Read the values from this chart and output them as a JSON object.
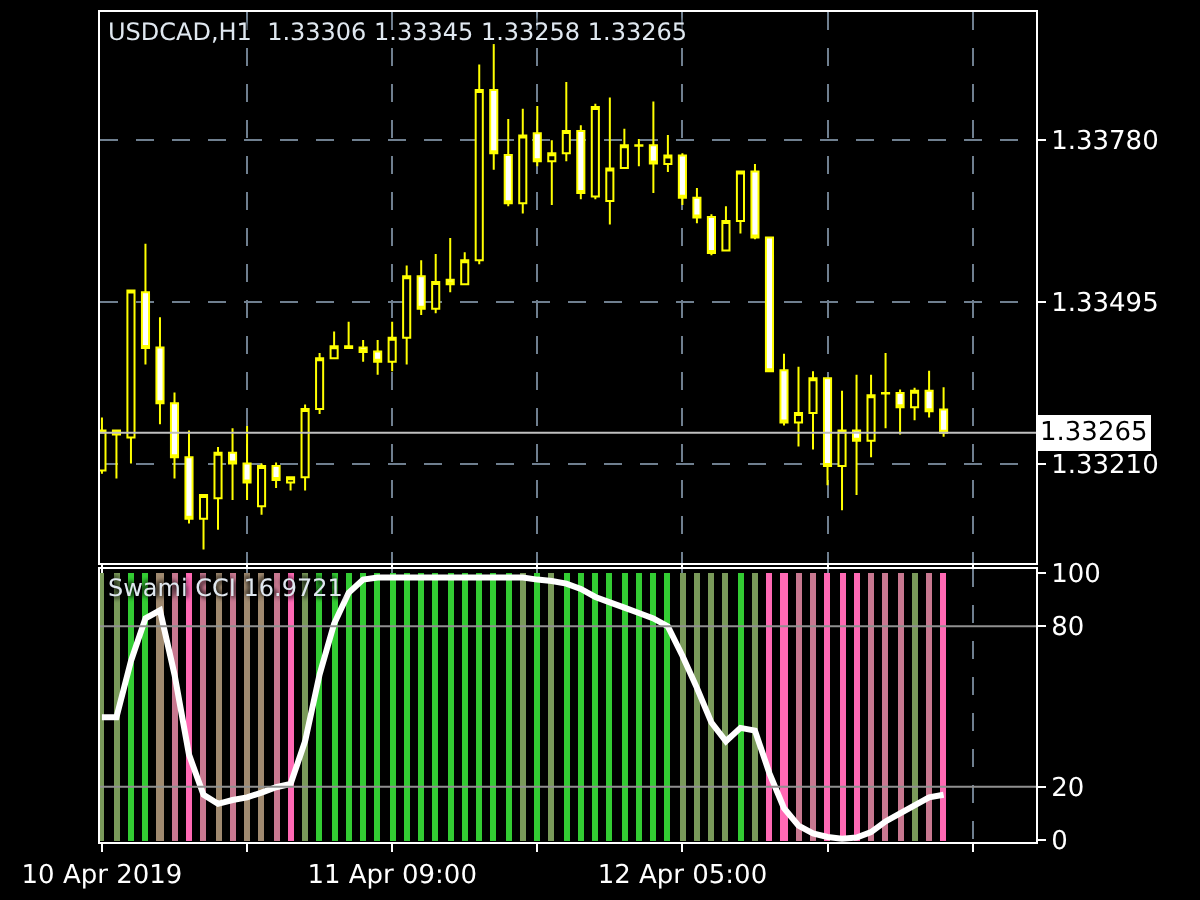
{
  "chart_data": [
    {
      "type": "candlestick",
      "title": "USDCAD,H1  1.33306 1.33345 1.33258 1.33265",
      "x": [
        "2019-04-10T13:00",
        "2019-04-10T14:00",
        "2019-04-10T15:00",
        "2019-04-10T16:00",
        "2019-04-10T17:00",
        "2019-04-10T18:00",
        "2019-04-10T19:00",
        "2019-04-10T20:00",
        "2019-04-10T21:00",
        "2019-04-10T22:00",
        "2019-04-10T23:00",
        "2019-04-11T00:00",
        "2019-04-11T01:00",
        "2019-04-11T02:00",
        "2019-04-11T03:00",
        "2019-04-11T04:00",
        "2019-04-11T05:00",
        "2019-04-11T06:00",
        "2019-04-11T07:00",
        "2019-04-11T08:00",
        "2019-04-11T09:00",
        "2019-04-11T10:00",
        "2019-04-11T11:00",
        "2019-04-11T12:00",
        "2019-04-11T13:00",
        "2019-04-11T14:00",
        "2019-04-11T15:00",
        "2019-04-11T16:00",
        "2019-04-11T17:00",
        "2019-04-11T18:00",
        "2019-04-11T19:00",
        "2019-04-11T20:00",
        "2019-04-11T21:00",
        "2019-04-11T22:00",
        "2019-04-11T23:00",
        "2019-04-12T00:00",
        "2019-04-12T01:00",
        "2019-04-12T02:00",
        "2019-04-12T03:00",
        "2019-04-12T04:00",
        "2019-04-12T05:00",
        "2019-04-12T06:00",
        "2019-04-12T07:00",
        "2019-04-12T08:00",
        "2019-04-12T09:00",
        "2019-04-12T10:00",
        "2019-04-12T11:00",
        "2019-04-12T12:00",
        "2019-04-12T13:00",
        "2019-04-12T14:00",
        "2019-04-12T15:00",
        "2019-04-12T16:00",
        "2019-04-12T17:00",
        "2019-04-12T18:00",
        "2019-04-12T19:00",
        "2019-04-12T20:00",
        "2019-04-12T21:00",
        "2019-04-12T22:00",
        "2019-04-12T23:00"
      ],
      "ohlc": [
        [
          1.33199,
          1.33292,
          1.33193,
          1.33269
        ],
        [
          1.33269,
          1.33271,
          1.33185,
          1.33262
        ],
        [
          1.33257,
          1.33515,
          1.33211,
          1.33515
        ],
        [
          1.33512,
          1.33597,
          1.33385,
          1.33414
        ],
        [
          1.33415,
          1.33468,
          1.3328,
          1.33317
        ],
        [
          1.33317,
          1.33336,
          1.33185,
          1.33222
        ],
        [
          1.33222,
          1.33269,
          1.33106,
          1.33114
        ],
        [
          1.33114,
          1.33156,
          1.3306,
          1.33156
        ],
        [
          1.3315,
          1.3324,
          1.33095,
          1.3323
        ],
        [
          1.3323,
          1.33273,
          1.33147,
          1.33211
        ],
        [
          1.33211,
          1.33277,
          1.33147,
          1.33178
        ],
        [
          1.33136,
          1.33211,
          1.33121,
          1.33207
        ],
        [
          1.33207,
          1.33213,
          1.33168,
          1.33182
        ],
        [
          1.33178,
          1.33187,
          1.33164,
          1.33187
        ],
        [
          1.33187,
          1.33315,
          1.33164,
          1.33307
        ],
        [
          1.33307,
          1.33405,
          1.33298,
          1.33396
        ],
        [
          1.33396,
          1.33443,
          1.33396,
          1.33417
        ],
        [
          1.33417,
          1.3346,
          1.33414,
          1.33414
        ],
        [
          1.33415,
          1.33428,
          1.3339,
          1.33407
        ],
        [
          1.33408,
          1.33428,
          1.33367,
          1.3339
        ],
        [
          1.3339,
          1.3346,
          1.33373,
          1.33432
        ],
        [
          1.33432,
          1.33559,
          1.33385,
          1.3354
        ],
        [
          1.3354,
          1.33568,
          1.33472,
          1.33483
        ],
        [
          1.33483,
          1.33579,
          1.33475,
          1.3353
        ],
        [
          1.33534,
          1.33607,
          1.33512,
          1.33526
        ],
        [
          1.33526,
          1.33582,
          1.33524,
          1.33568
        ],
        [
          1.33568,
          1.33912,
          1.33561,
          1.33867
        ],
        [
          1.33867,
          1.33948,
          1.33727,
          1.33756
        ],
        [
          1.33753,
          1.33816,
          1.33663,
          1.33668
        ],
        [
          1.33668,
          1.33834,
          1.3365,
          1.33787
        ],
        [
          1.33791,
          1.33839,
          1.33733,
          1.33742
        ],
        [
          1.33742,
          1.33779,
          1.33665,
          1.33756
        ],
        [
          1.33756,
          1.33881,
          1.33742,
          1.33795
        ],
        [
          1.33795,
          1.33805,
          1.33675,
          1.33686
        ],
        [
          1.3368,
          1.33843,
          1.33675,
          1.33837
        ],
        [
          1.33672,
          1.33854,
          1.33631,
          1.33729
        ],
        [
          1.3373,
          1.33799,
          1.3373,
          1.3377
        ],
        [
          1.3377,
          1.33781,
          1.33733,
          1.33769
        ],
        [
          1.3377,
          1.33847,
          1.33686,
          1.33738
        ],
        [
          1.33737,
          1.33788,
          1.33723,
          1.33752
        ],
        [
          1.33752,
          1.33756,
          1.33665,
          1.33678
        ],
        [
          1.33678,
          1.33695,
          1.33633,
          1.33643
        ],
        [
          1.33644,
          1.33649,
          1.33577,
          1.33581
        ],
        [
          1.33585,
          1.33663,
          1.33585,
          1.33637
        ],
        [
          1.33637,
          1.33724,
          1.33615,
          1.33724
        ],
        [
          1.33724,
          1.33737,
          1.33605,
          1.33608
        ],
        [
          1.33608,
          1.33608,
          1.33373,
          1.33373
        ],
        [
          1.33375,
          1.33404,
          1.33278,
          1.33283
        ],
        [
          1.33283,
          1.33381,
          1.33241,
          1.333
        ],
        [
          1.333,
          1.33373,
          1.33236,
          1.33361
        ],
        [
          1.33361,
          1.33361,
          1.33173,
          1.33207
        ],
        [
          1.33207,
          1.33339,
          1.33129,
          1.33269
        ],
        [
          1.33269,
          1.33367,
          1.33156,
          1.33251
        ],
        [
          1.33251,
          1.33367,
          1.33222,
          1.33331
        ],
        [
          1.33335,
          1.33405,
          1.33273,
          1.33334
        ],
        [
          1.33335,
          1.33341,
          1.33262,
          1.3331
        ],
        [
          1.3331,
          1.33344,
          1.33287,
          1.33339
        ],
        [
          1.33339,
          1.33374,
          1.33292,
          1.33303
        ],
        [
          1.33306,
          1.33345,
          1.33258,
          1.33265
        ]
      ],
      "color": "#ffff00",
      "xlim": [
        "2019-04-10T12:52",
        "2019-04-13T05:22"
      ],
      "xticks": [
        {
          "value": "2019-04-10T13:00",
          "label": null
        },
        {
          "value": "2019-04-10T23:00",
          "label": null
        },
        {
          "value": "2019-04-11T09:00",
          "label": null
        },
        {
          "value": "2019-04-11T19:00",
          "label": null
        },
        {
          "value": "2019-04-12T05:00",
          "label": null
        },
        {
          "value": "2019-04-12T15:00",
          "label": null
        },
        {
          "value": "2019-04-13T01:00",
          "label": null
        }
      ],
      "ylim": [
        1.33037,
        1.34004
      ],
      "yticks": [
        {
          "value": 1.3321,
          "label": "1.33210"
        },
        {
          "value": 1.33495,
          "label": "1.33495"
        },
        {
          "value": 1.3378,
          "label": "1.33780"
        }
      ],
      "ref_lines": [
        {
          "axis": "y",
          "value": 1.33265,
          "label": "1.33265",
          "color": "#c0c0c0"
        }
      ],
      "grid": true,
      "tick_labels": "y"
    },
    {
      "type": "bar",
      "title": "Swami CCI 16.9721",
      "x": [
        "2019-04-10T13:00",
        "2019-04-10T14:00",
        "2019-04-10T15:00",
        "2019-04-10T16:00",
        "2019-04-10T17:00",
        "2019-04-10T18:00",
        "2019-04-10T19:00",
        "2019-04-10T20:00",
        "2019-04-10T21:00",
        "2019-04-10T22:00",
        "2019-04-10T23:00",
        "2019-04-11T00:00",
        "2019-04-11T01:00",
        "2019-04-11T02:00",
        "2019-04-11T03:00",
        "2019-04-11T04:00",
        "2019-04-11T05:00",
        "2019-04-11T06:00",
        "2019-04-11T07:00",
        "2019-04-11T08:00",
        "2019-04-11T09:00",
        "2019-04-11T10:00",
        "2019-04-11T11:00",
        "2019-04-11T12:00",
        "2019-04-11T13:00",
        "2019-04-11T14:00",
        "2019-04-11T15:00",
        "2019-04-11T16:00",
        "2019-04-11T17:00",
        "2019-04-11T18:00",
        "2019-04-11T19:00",
        "2019-04-11T20:00",
        "2019-04-11T21:00",
        "2019-04-11T22:00",
        "2019-04-11T23:00",
        "2019-04-12T00:00",
        "2019-04-12T01:00",
        "2019-04-12T02:00",
        "2019-04-12T03:00",
        "2019-04-12T04:00",
        "2019-04-12T05:00",
        "2019-04-12T06:00",
        "2019-04-12T07:00",
        "2019-04-12T08:00",
        "2019-04-12T09:00",
        "2019-04-12T10:00",
        "2019-04-12T11:00",
        "2019-04-12T12:00",
        "2019-04-12T13:00",
        "2019-04-12T14:00",
        "2019-04-12T15:00",
        "2019-04-12T16:00",
        "2019-04-12T17:00",
        "2019-04-12T18:00",
        "2019-04-12T19:00",
        "2019-04-12T20:00",
        "2019-04-12T21:00",
        "2019-04-12T22:00",
        "2019-04-12T23:00"
      ],
      "series": [
        {
          "type": "bar",
          "values": [
            100,
            100,
            100,
            100,
            100,
            100,
            100,
            100,
            100,
            100,
            100,
            100,
            100,
            100,
            100,
            100,
            100,
            100,
            100,
            100,
            100,
            100,
            100,
            100,
            100,
            100,
            100,
            100,
            100,
            100,
            100,
            100,
            100,
            100,
            100,
            100,
            100,
            100,
            100,
            100,
            100,
            100,
            100,
            100,
            100,
            100,
            100,
            100,
            100,
            100,
            100,
            100,
            100,
            100,
            100,
            100,
            100,
            100,
            100
          ],
          "colors": [
            "#7a9a5a",
            "#7a9a5a",
            "#33cc33",
            "#33cc33",
            "#a08a70",
            "#c87890",
            "#ff69b4",
            "#c87890",
            "#a08a70",
            "#c87890",
            "#a08a70",
            "#a08a70",
            "#c87890",
            "#ff69b4",
            "#7a9a5a",
            "#33cc33",
            "#33cc33",
            "#33cc33",
            "#33cc33",
            "#33cc33",
            "#33cc33",
            "#33cc33",
            "#33cc33",
            "#33cc33",
            "#33cc33",
            "#33cc33",
            "#33cc33",
            "#33cc33",
            "#33cc33",
            "#7a9a5a",
            "#33cc33",
            "#7a9a5a",
            "#33cc33",
            "#33cc33",
            "#33cc33",
            "#33cc33",
            "#33cc33",
            "#33cc33",
            "#33cc33",
            "#33cc33",
            "#7a9a5a",
            "#7a9a5a",
            "#7a9a5a",
            "#7a9a5a",
            "#33cc33",
            "#7a9a5a",
            "#ff69b4",
            "#ff69b4",
            "#c87890",
            "#c87890",
            "#ff69b4",
            "#ff69b4",
            "#ff69b4",
            "#c87890",
            "#c87890",
            "#c87890",
            "#7a9a5a",
            "#c87890",
            "#ff69b4"
          ]
        },
        {
          "type": "line",
          "color": "#ffffff",
          "values": [
            46,
            46,
            67,
            83,
            86,
            62,
            32,
            17,
            13.6,
            15,
            16,
            17.8,
            19.8,
            21,
            37,
            62,
            81,
            92.6,
            97.5,
            98.3,
            98.3,
            98.3,
            98.3,
            98.3,
            98.3,
            98.3,
            98.3,
            98.3,
            98.3,
            98.3,
            97.5,
            97,
            96,
            94,
            91,
            89,
            87,
            85,
            83,
            80,
            69,
            57,
            44,
            37,
            42,
            41,
            25,
            12,
            5.4,
            2.5,
            1.2,
            0.5,
            1,
            3,
            7,
            10,
            13,
            16,
            17
          ]
        }
      ],
      "xlim": [
        "2019-04-10T12:52",
        "2019-04-13T05:22"
      ],
      "xticks": [
        {
          "value": "2019-04-10T13:00",
          "label": "10 Apr 2019"
        },
        {
          "value": "2019-04-10T23:00",
          "label": null
        },
        {
          "value": "2019-04-11T09:00",
          "label": "11 Apr 09:00"
        },
        {
          "value": "2019-04-11T19:00",
          "label": null
        },
        {
          "value": "2019-04-12T05:00",
          "label": "12 Apr 05:00"
        },
        {
          "value": "2019-04-12T15:00",
          "label": null
        },
        {
          "value": "2019-04-13T01:00",
          "label": null
        }
      ],
      "ylim": [
        -0.7,
        101.5
      ],
      "yticks": [
        0,
        20,
        80,
        100
      ],
      "ref_lines": [
        {
          "axis": "y",
          "value": 20,
          "color": "#909090"
        },
        {
          "axis": "y",
          "value": 80,
          "color": "#909090"
        }
      ],
      "grid": "x",
      "marker": "none",
      "line_style": "solid"
    }
  ]
}
